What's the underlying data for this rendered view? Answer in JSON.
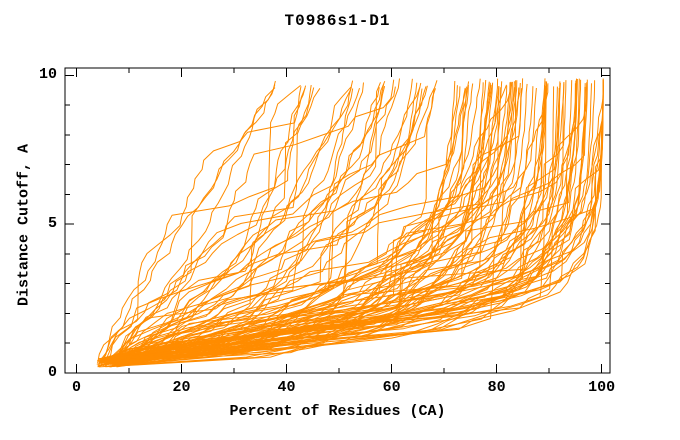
{
  "page": {
    "background": "#ffffff"
  },
  "chart_data": {
    "type": "line",
    "title": "T0986s1-D1",
    "xlabel": "Percent of Residues (CA)",
    "ylabel": "Distance Cutoff, A",
    "grid": false,
    "legend": "none",
    "line_color": "#ff8c00",
    "axis_color": "#000000",
    "text_color": "#000000",
    "x_axis": {
      "range": [
        -2.2,
        101.6
      ],
      "major_ticks": [
        0,
        20,
        40,
        60,
        80,
        100
      ],
      "minor_ticks": [
        10,
        30,
        50,
        70,
        90
      ],
      "tick_labels": [
        "0",
        "20",
        "40",
        "60",
        "80",
        "100"
      ]
    },
    "y_axis": {
      "range": [
        0,
        10.25
      ],
      "major_ticks": [
        0,
        5,
        10
      ],
      "minor_ticks": [
        1,
        2,
        3,
        4,
        6,
        7,
        8,
        9
      ],
      "tick_labels": [
        "0",
        "5",
        "10"
      ]
    },
    "series_generator": {
      "description": "Approximately 120 overlapping cumulative model-accuracy curves (CASP-style): for each predicted model, percent of CA residues fitting under each distance cutoff. Curves fan out from ~(5%, 0.4 A); worst models climb to ~9.8 A by 33-55% of residues, best models stay under ~2 A out to ~90% then rise near-vertically at ~100%.",
      "count": 120,
      "seed": 20986,
      "steps": 30,
      "x_start_range": [
        3.8,
        8.5
      ],
      "y_start_range": [
        0.2,
        0.5
      ],
      "y_top_range": [
        9.55,
        9.9
      ],
      "x_top_range": [
        33,
        100.3
      ],
      "good_fraction": 0.6,
      "max_early_weight": 8,
      "noise": 1.1,
      "cliff_prob": 0.55,
      "plateau_prob": 0.5
    }
  }
}
